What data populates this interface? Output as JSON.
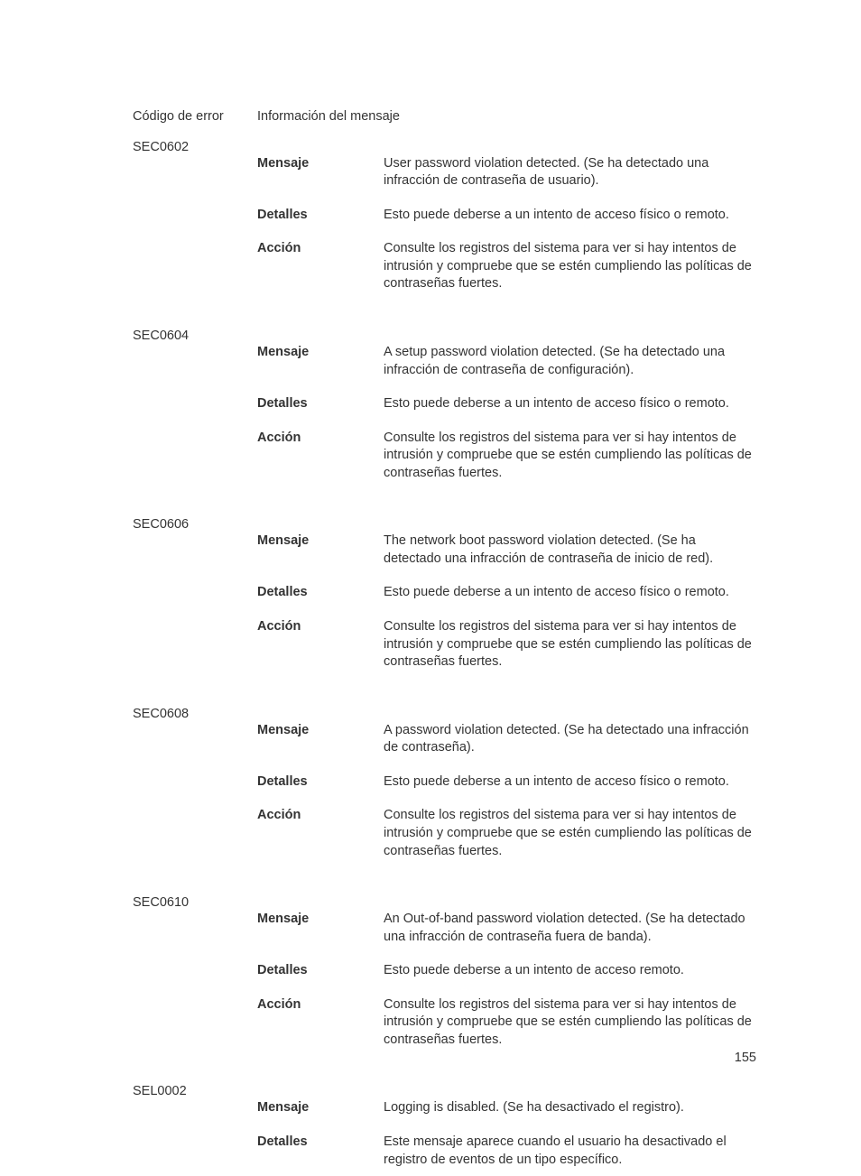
{
  "header": {
    "code_col": "Código de error",
    "info_col": "Información del mensaje"
  },
  "labels": {
    "mensaje": "Mensaje",
    "detalles": "Detalles",
    "accion": "Acción"
  },
  "entries": [
    {
      "code": "SEC0602",
      "mensaje": "User password violation detected. (Se ha detectado una infracción de contraseña de usuario).",
      "detalles": "Esto puede deberse a un intento de acceso físico o remoto.",
      "accion": "Consulte los registros del sistema para ver si hay intentos de intrusión y compruebe que se estén cumpliendo las políticas de contraseñas fuertes."
    },
    {
      "code": "SEC0604",
      "mensaje": "A setup password violation detected. (Se ha detectado una infracción de contraseña de configuración).",
      "detalles": "Esto puede deberse a un intento de acceso físico o remoto.",
      "accion": "Consulte los registros del sistema para ver si hay intentos de intrusión y compruebe que se estén cumpliendo las políticas de contraseñas fuertes."
    },
    {
      "code": "SEC0606",
      "mensaje": "The network boot password violation detected. (Se ha detectado una infracción de contraseña de inicio de red).",
      "detalles": "Esto puede deberse a un intento de acceso físico o remoto.",
      "accion": "Consulte los registros del sistema para ver si hay intentos de intrusión y compruebe que se estén cumpliendo las políticas de contraseñas fuertes."
    },
    {
      "code": "SEC0608",
      "mensaje": "A password violation detected. (Se ha detectado una infracción de contraseña).",
      "detalles": "Esto puede deberse a un intento de acceso físico o remoto.",
      "accion": "Consulte los registros del sistema para ver si hay intentos de intrusión y compruebe que se estén cumpliendo las políticas de contraseñas fuertes."
    },
    {
      "code": "SEC0610",
      "mensaje": "An Out-of-band password violation detected. (Se ha detectado una infracción de contraseña fuera de banda).",
      "detalles": "Esto puede deberse a un intento de acceso remoto.",
      "accion": "Consulte los registros del sistema para ver si hay intentos de intrusión y compruebe que se estén cumpliendo las políticas de contraseñas fuertes."
    },
    {
      "code": "SEL0002",
      "mensaje": "Logging is disabled. (Se ha desactivado el registro).",
      "detalles": "Este mensaje aparece cuando el usuario ha desactivado el registro de eventos de un tipo específico.",
      "accion": null
    }
  ],
  "page_number": "155"
}
